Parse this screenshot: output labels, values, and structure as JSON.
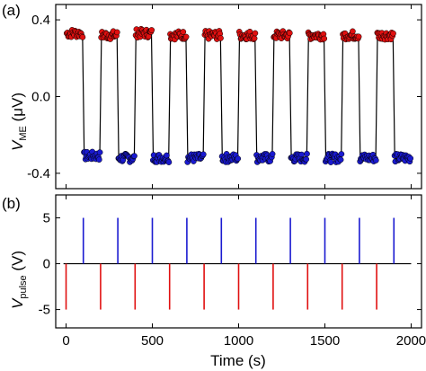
{
  "figure": {
    "panel_a_label": "(a)",
    "panel_b_label": "(b)",
    "xlabel": "Time (s)",
    "ylabel_a_main": "V",
    "ylabel_a_sub": "ME",
    "ylabel_a_unit": " (μV)",
    "ylabel_b_main": "V",
    "ylabel_b_sub": "pulse",
    "ylabel_b_unit": " (V)"
  },
  "colors": {
    "positive": "#e01010",
    "negative": "#1a1ad0",
    "trace": "#000000",
    "marker_edge": "#000000"
  },
  "chart_data": [
    {
      "type": "line",
      "panel": "(a)",
      "xlabel": "Time (s)",
      "ylabel": "V_ME (μV)",
      "xlim": [
        -60,
        2060
      ],
      "ylim": [
        -0.48,
        0.48
      ],
      "xticks": [
        0,
        500,
        1000,
        1500,
        2000
      ],
      "xtick_labels": [
        "0",
        "500",
        "1000",
        "1500",
        "2000"
      ],
      "yticks": [
        -0.4,
        0.0,
        0.4
      ],
      "ytick_labels": [
        "-0.4",
        "0.0",
        "0.4"
      ],
      "grid": false,
      "markers": "filled circles",
      "state_duration_s": 100,
      "series": [
        {
          "color": "red",
          "x_start": [
            0,
            200,
            400,
            600,
            800,
            1000,
            1200,
            1400,
            1600,
            1800
          ],
          "y_level": [
            0.33,
            0.32,
            0.33,
            0.32,
            0.32,
            0.32,
            0.32,
            0.32,
            0.32,
            0.32
          ]
        },
        {
          "color": "blue",
          "x_start": [
            100,
            300,
            500,
            700,
            900,
            1100,
            1300,
            1500,
            1700,
            1900
          ],
          "y_level": [
            -0.31,
            -0.32,
            -0.32,
            -0.32,
            -0.32,
            -0.32,
            -0.32,
            -0.32,
            -0.32,
            -0.32
          ]
        }
      ]
    },
    {
      "type": "line",
      "panel": "(b)",
      "xlabel": "Time (s)",
      "ylabel": "V_pulse (V)",
      "xlim": [
        -60,
        2060
      ],
      "ylim": [
        -7,
        7.5
      ],
      "xticks": [
        0,
        500,
        1000,
        1500,
        2000
      ],
      "xtick_labels": [
        "0",
        "500",
        "1000",
        "1500",
        "2000"
      ],
      "yticks": [
        -5,
        0,
        5
      ],
      "ytick_labels": [
        "-5",
        "0",
        "5"
      ],
      "grid": false,
      "baseline": 0,
      "series": [
        {
          "color": "blue",
          "x": [
            100,
            300,
            500,
            700,
            900,
            1100,
            1300,
            1500,
            1700,
            1900
          ],
          "amplitude": 5
        },
        {
          "color": "red",
          "x": [
            0,
            200,
            400,
            600,
            800,
            1000,
            1200,
            1400,
            1600,
            1800
          ],
          "amplitude": -5
        }
      ]
    }
  ]
}
